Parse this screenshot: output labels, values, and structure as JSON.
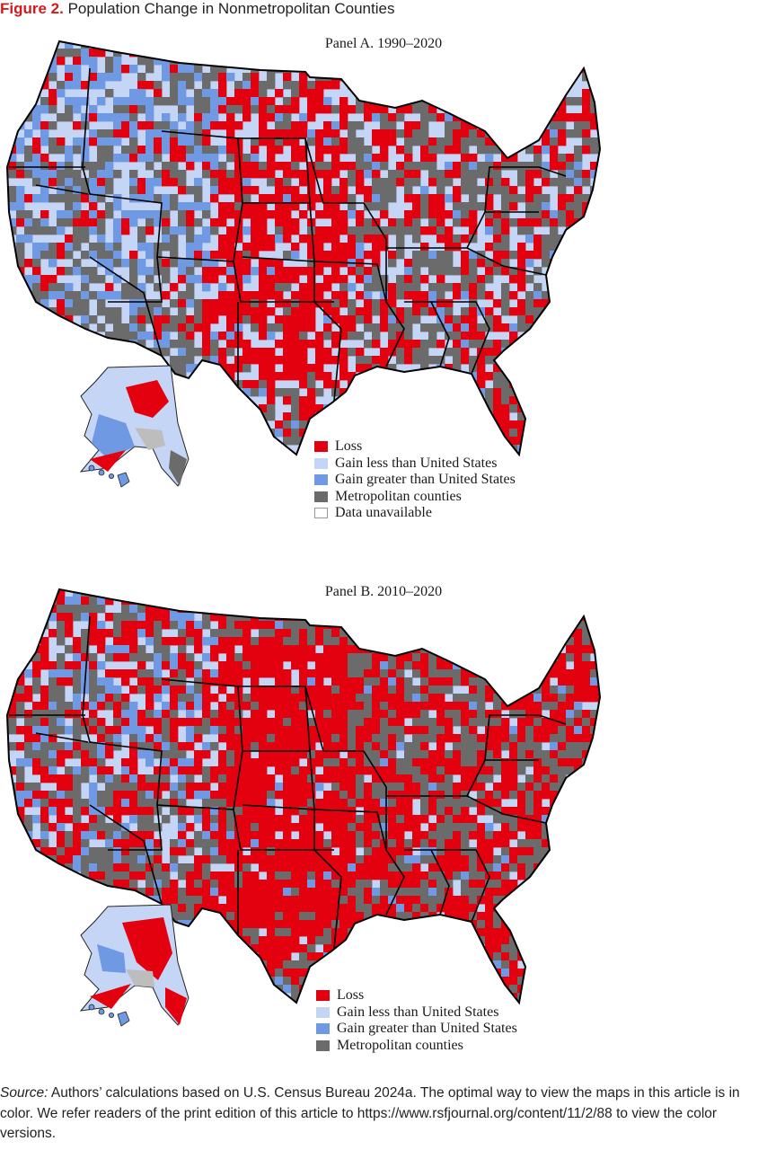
{
  "figure": {
    "number": "Figure 2.",
    "title": "Population Change in Nonmetropolitan Counties"
  },
  "panels": [
    {
      "title": "Panel A. 1990–2020",
      "legend": [
        "Loss",
        "Gain less than United States",
        "Gain greater than United States",
        "Metropolitan counties",
        "Data unavailable"
      ]
    },
    {
      "title": "Panel B. 2010–2020",
      "legend": [
        "Loss",
        "Gain less than United States",
        "Gain greater than United States",
        "Metropolitan counties"
      ]
    }
  ],
  "source": {
    "label": "Source:",
    "text": "Authors’ calculations based on U.S. Census Bureau 2024a. The optimal way to view the maps in this article is in color. We refer readers of the print edition of this article to https://www.rsfjournal.org/content/11/2/88 to view the color versions."
  },
  "colors": {
    "loss": "#e3000f",
    "gain_less": "#c5d5f5",
    "gain_greater": "#6f9ae3",
    "metro": "#6b6b6b",
    "unavailable": "#ffffff"
  }
}
